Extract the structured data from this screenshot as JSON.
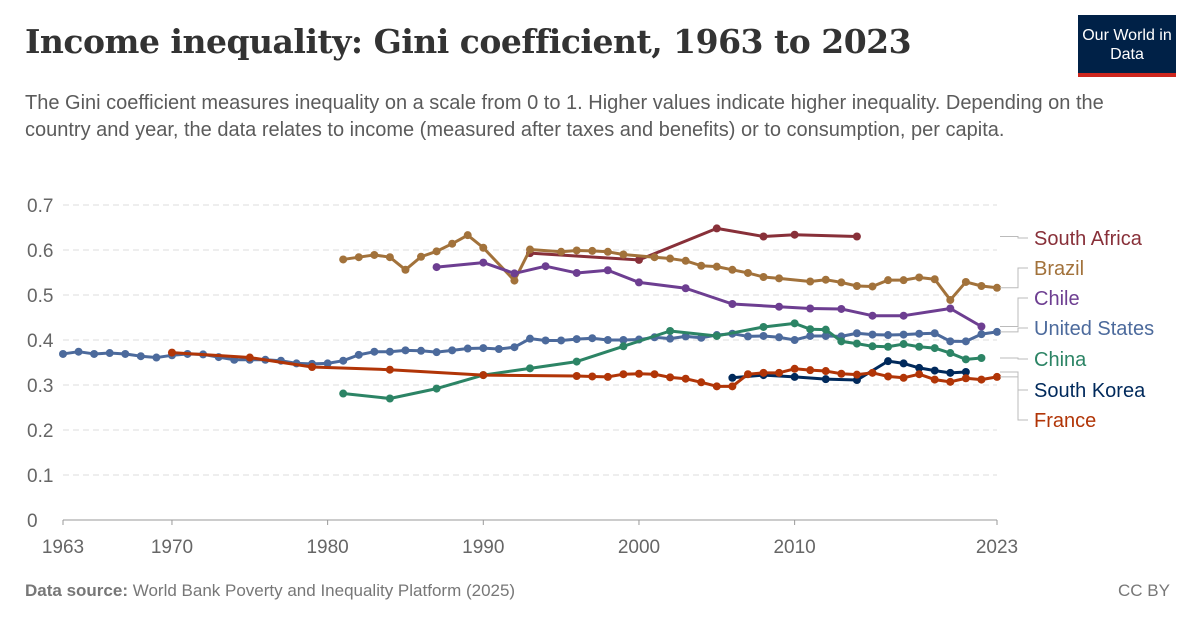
{
  "header": {
    "title": "Income inequality: Gini coefficient, 1963 to 2023",
    "subtitle": "The Gini coefficient measures inequality on a scale from 0 to 1. Higher values indicate higher inequality. Depending on the country and year, the data relates to income (measured after taxes and benefits) or to consumption, per capita.",
    "logo": "Our World in Data"
  },
  "footer": {
    "source_label": "Data source:",
    "source": "World Bank Poverty and Inequality Platform (2025)",
    "license": "CC BY"
  },
  "chart_data": {
    "type": "line",
    "title": "Income inequality: Gini coefficient, 1963 to 2023",
    "xlim": [
      1963,
      2023
    ],
    "ylim": [
      0,
      0.7
    ],
    "grid": true,
    "legend": "right",
    "xticks": [
      "1963",
      "1970",
      "1980",
      "1990",
      "2000",
      "2010",
      "2023"
    ],
    "yticks": [
      "0",
      "0.1",
      "0.2",
      "0.3",
      "0.4",
      "0.5",
      "0.6",
      "0.7"
    ],
    "series": [
      {
        "name": "South Africa",
        "color": "#883039",
        "x": [
          1993,
          2000,
          2005,
          2008,
          2010,
          2014
        ],
        "y": [
          0.593,
          0.578,
          0.648,
          0.63,
          0.634,
          0.63
        ]
      },
      {
        "name": "Brazil",
        "color": "#a2723b",
        "x": [
          1981,
          1982,
          1983,
          1984,
          1985,
          1986,
          1987,
          1988,
          1989,
          1990,
          1992,
          1993,
          1995,
          1996,
          1997,
          1998,
          1999,
          2001,
          2002,
          2003,
          2004,
          2005,
          2006,
          2007,
          2008,
          2009,
          2011,
          2012,
          2013,
          2014,
          2015,
          2016,
          2017,
          2018,
          2019,
          2020,
          2021,
          2022,
          2023
        ],
        "y": [
          0.579,
          0.584,
          0.589,
          0.584,
          0.556,
          0.585,
          0.597,
          0.614,
          0.633,
          0.605,
          0.532,
          0.601,
          0.596,
          0.599,
          0.598,
          0.596,
          0.59,
          0.584,
          0.581,
          0.576,
          0.565,
          0.563,
          0.556,
          0.549,
          0.54,
          0.537,
          0.53,
          0.534,
          0.528,
          0.52,
          0.519,
          0.533,
          0.533,
          0.539,
          0.535,
          0.489,
          0.529,
          0.52,
          0.516
        ]
      },
      {
        "name": "Chile",
        "color": "#6d3e91",
        "x": [
          1987,
          1990,
          1992,
          1994,
          1996,
          1998,
          2000,
          2003,
          2006,
          2009,
          2011,
          2013,
          2015,
          2017,
          2020,
          2022
        ],
        "y": [
          0.562,
          0.572,
          0.548,
          0.564,
          0.549,
          0.555,
          0.528,
          0.515,
          0.48,
          0.474,
          0.47,
          0.469,
          0.454,
          0.454,
          0.47,
          0.43
        ]
      },
      {
        "name": "United States",
        "color": "#4c6a9c",
        "x": [
          1963,
          1964,
          1965,
          1966,
          1967,
          1968,
          1969,
          1970,
          1971,
          1972,
          1973,
          1974,
          1975,
          1976,
          1977,
          1978,
          1979,
          1980,
          1981,
          1982,
          1983,
          1984,
          1985,
          1986,
          1987,
          1988,
          1989,
          1990,
          1991,
          1992,
          1993,
          1994,
          1995,
          1996,
          1997,
          1998,
          1999,
          2000,
          2001,
          2002,
          2003,
          2004,
          2005,
          2006,
          2007,
          2008,
          2009,
          2010,
          2011,
          2012,
          2013,
          2014,
          2015,
          2016,
          2017,
          2018,
          2019,
          2020,
          2021,
          2022,
          2023
        ],
        "y": [
          0.369,
          0.374,
          0.369,
          0.371,
          0.369,
          0.364,
          0.361,
          0.366,
          0.369,
          0.368,
          0.362,
          0.356,
          0.356,
          0.356,
          0.354,
          0.348,
          0.347,
          0.348,
          0.354,
          0.367,
          0.374,
          0.374,
          0.377,
          0.376,
          0.373,
          0.377,
          0.381,
          0.382,
          0.38,
          0.384,
          0.403,
          0.399,
          0.399,
          0.402,
          0.404,
          0.4,
          0.4,
          0.401,
          0.406,
          0.403,
          0.408,
          0.405,
          0.411,
          0.414,
          0.408,
          0.409,
          0.406,
          0.4,
          0.409,
          0.409,
          0.408,
          0.415,
          0.412,
          0.411,
          0.412,
          0.414,
          0.415,
          0.397,
          0.397,
          0.413,
          0.418
        ]
      },
      {
        "name": "China",
        "color": "#2c8465",
        "x": [
          1981,
          1984,
          1987,
          1990,
          1993,
          1996,
          1999,
          2002,
          2005,
          2008,
          2010,
          2011,
          2012,
          2013,
          2014,
          2015,
          2016,
          2017,
          2018,
          2019,
          2020,
          2021,
          2022
        ],
        "y": [
          0.281,
          0.27,
          0.292,
          0.322,
          0.337,
          0.352,
          0.386,
          0.42,
          0.409,
          0.429,
          0.437,
          0.424,
          0.423,
          0.397,
          0.392,
          0.386,
          0.385,
          0.391,
          0.385,
          0.382,
          0.371,
          0.357,
          0.36
        ]
      },
      {
        "name": "South Korea",
        "color": "#00295b",
        "x": [
          2006,
          2008,
          2010,
          2012,
          2014,
          2016,
          2017,
          2018,
          2019,
          2020,
          2021
        ],
        "y": [
          0.316,
          0.322,
          0.318,
          0.313,
          0.311,
          0.353,
          0.348,
          0.338,
          0.332,
          0.327,
          0.329
        ]
      },
      {
        "name": "France",
        "color": "#b13507",
        "x": [
          1970,
          1975,
          1979,
          1984,
          1990,
          1996,
          1997,
          1998,
          1999,
          2000,
          2001,
          2002,
          2003,
          2004,
          2005,
          2006,
          2007,
          2008,
          2009,
          2010,
          2011,
          2012,
          2013,
          2014,
          2015,
          2016,
          2017,
          2018,
          2019,
          2020,
          2021,
          2022,
          2023
        ],
        "y": [
          0.372,
          0.361,
          0.34,
          0.334,
          0.322,
          0.32,
          0.319,
          0.318,
          0.324,
          0.325,
          0.324,
          0.317,
          0.314,
          0.306,
          0.297,
          0.297,
          0.324,
          0.327,
          0.327,
          0.336,
          0.333,
          0.331,
          0.325,
          0.323,
          0.327,
          0.319,
          0.316,
          0.324,
          0.312,
          0.307,
          0.315,
          0.312,
          0.318
        ]
      }
    ]
  }
}
